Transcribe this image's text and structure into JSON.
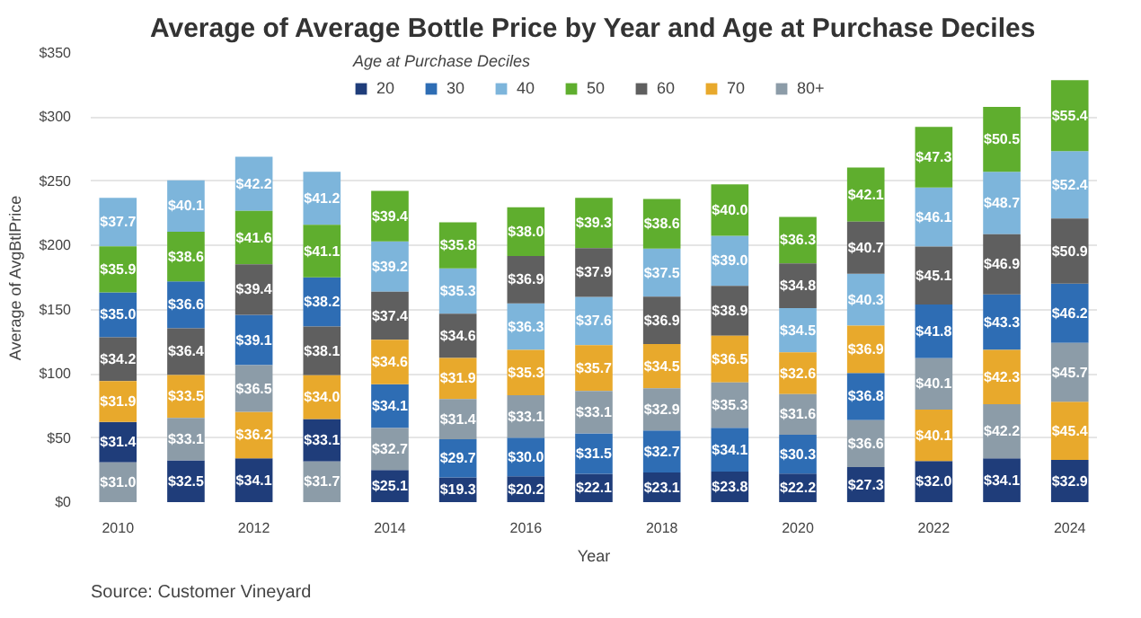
{
  "chart_data": {
    "type": "bar",
    "title": "Average of Average Bottle Price by Year and Age at Purchase Deciles",
    "xlabel": "Year",
    "ylabel": "Average of AvgBtlPrice",
    "legend_title": "Age at Purchase Deciles",
    "legend": "top",
    "grid": "y",
    "x": [
      2010,
      2011,
      2012,
      2013,
      2014,
      2015,
      2016,
      2017,
      2018,
      2019,
      2020,
      2021,
      2022,
      2023,
      2024
    ],
    "xlim": [
      2009.6,
      2024.4
    ],
    "xticks": [
      2010,
      2012,
      2014,
      2016,
      2018,
      2020,
      2022,
      2024
    ],
    "ylim": [
      0,
      350
    ],
    "yticks": [
      {
        "value": 0,
        "label": "$0"
      },
      {
        "value": 50,
        "label": "$50"
      },
      {
        "value": 100,
        "label": "$100"
      },
      {
        "value": 150,
        "label": "$150"
      },
      {
        "value": 200,
        "label": "$200"
      },
      {
        "value": 250,
        "label": "$250"
      },
      {
        "value": 300,
        "label": "$300"
      },
      {
        "value": 350,
        "label": "$350"
      }
    ],
    "series": [
      {
        "name": "20",
        "color": "#1f3d7a",
        "base": [
          31.0,
          0,
          0,
          31.7,
          0,
          0,
          0,
          0,
          0,
          0,
          0,
          0,
          0,
          0,
          0
        ],
        "values": [
          31.4,
          32.5,
          34.1,
          33.1,
          25.1,
          19.3,
          20.2,
          22.1,
          23.1,
          23.8,
          22.2,
          27.3,
          32.0,
          34.1,
          32.9
        ],
        "value_labels": [
          "$31.4",
          "$32.5",
          "$34.1",
          "$33.1",
          "$25.1",
          "$19.3",
          "$20.2",
          "$22.1",
          "$23.1",
          "$23.8",
          "$22.2",
          "$27.3",
          "$32.0",
          "$34.1",
          "$32.9"
        ]
      },
      {
        "name": "30",
        "color": "#2e6db4",
        "base": [
          128.5,
          135.5,
          106.8,
          136.9,
          57.8,
          19.3,
          20.2,
          22.1,
          23.1,
          23.8,
          22.2,
          63.9,
          112.2,
          118.6,
          124.0
        ],
        "values": [
          35.0,
          36.6,
          39.1,
          38.2,
          34.1,
          29.7,
          30.0,
          31.5,
          32.7,
          34.1,
          30.3,
          36.8,
          41.8,
          43.3,
          46.2
        ],
        "value_labels": [
          "$35.0",
          "$36.6",
          "$39.1",
          "$38.2",
          "$34.1",
          "$29.7",
          "$30.0",
          "$31.5",
          "$32.7",
          "$34.1",
          "$30.3",
          "$36.8",
          "$41.8",
          "$43.3",
          "$46.2"
        ]
      },
      {
        "name": "40",
        "color": "#7db5db",
        "base": [
          199.4,
          210.7,
          226.9,
          216.2,
          163.9,
          146.9,
          118.6,
          122.4,
          160.1,
          168.6,
          116.7,
          137.6,
          199.1,
          208.8,
          221.1
        ],
        "values": [
          37.7,
          40.1,
          42.2,
          41.2,
          39.2,
          35.3,
          36.3,
          37.6,
          37.5,
          39.0,
          34.5,
          40.3,
          46.1,
          48.7,
          52.4
        ],
        "value_labels": [
          "$37.7",
          "$40.1",
          "$42.2",
          "$41.2",
          "$39.2",
          "$35.3",
          "$36.3",
          "$37.6",
          "$37.5",
          "$39.0",
          "$34.5",
          "$40.3",
          "$46.1",
          "$48.7",
          "$52.4"
        ]
      },
      {
        "name": "50",
        "color": "#5fae2e",
        "base": [
          163.5,
          172.1,
          185.3,
          175.1,
          203.1,
          182.2,
          191.8,
          197.9,
          197.6,
          207.6,
          186.0,
          218.6,
          245.2,
          257.5,
          273.5
        ],
        "values": [
          35.9,
          38.6,
          41.6,
          41.1,
          39.4,
          35.8,
          38.0,
          39.3,
          38.6,
          40.0,
          36.3,
          42.1,
          47.3,
          50.5,
          55.4
        ],
        "value_labels": [
          "$35.9",
          "$38.6",
          "$41.6",
          "$41.1",
          "$39.4",
          "$35.8",
          "$38.0",
          "$39.3",
          "$38.6",
          "$40.0",
          "$36.3",
          "$42.1",
          "$47.3",
          "$50.5",
          "$55.4"
        ]
      },
      {
        "name": "60",
        "color": "#5f5f5f",
        "base": [
          94.3,
          99.1,
          145.9,
          98.8,
          126.5,
          112.3,
          154.9,
          160.0,
          123.2,
          129.7,
          151.2,
          177.9,
          154.0,
          161.9,
          170.2
        ],
        "values": [
          34.2,
          36.4,
          39.4,
          38.1,
          37.4,
          34.6,
          36.9,
          37.9,
          36.9,
          38.9,
          34.8,
          40.7,
          45.1,
          46.9,
          50.9
        ],
        "value_labels": [
          "$34.2",
          "$36.4",
          "$39.4",
          "$38.1",
          "$37.4",
          "$34.6",
          "$36.9",
          "$37.9",
          "$36.9",
          "$38.9",
          "$34.8",
          "$40.7",
          "$45.1",
          "$46.9",
          "$50.9"
        ]
      },
      {
        "name": "70",
        "color": "#e8a92c",
        "base": [
          62.4,
          65.6,
          34.1,
          64.8,
          91.9,
          80.4,
          83.3,
          86.7,
          88.7,
          93.2,
          84.1,
          100.7,
          32.0,
          76.3,
          32.9
        ],
        "values": [
          31.9,
          33.5,
          36.2,
          34.0,
          34.6,
          31.9,
          35.3,
          35.7,
          34.5,
          36.5,
          32.6,
          36.9,
          40.1,
          42.3,
          45.4
        ],
        "value_labels": [
          "$31.9",
          "$33.5",
          "$36.2",
          "$34.0",
          "$34.6",
          "$31.9",
          "$35.3",
          "$35.7",
          "$34.5",
          "$36.5",
          "$32.6",
          "$36.9",
          "$40.1",
          "$42.3",
          "$45.4"
        ]
      },
      {
        "name": "80+",
        "color": "#8c9ca8",
        "base": [
          0,
          32.5,
          70.3,
          0,
          25.1,
          49.0,
          50.2,
          53.6,
          55.8,
          57.9,
          52.5,
          27.3,
          72.1,
          34.1,
          78.3
        ],
        "values": [
          31.0,
          33.1,
          36.5,
          31.7,
          32.7,
          31.4,
          33.1,
          33.1,
          32.9,
          35.3,
          31.6,
          36.6,
          40.1,
          42.2,
          45.7
        ],
        "value_labels": [
          "$31.0",
          "$33.1",
          "$36.5",
          "$31.7",
          "$32.7",
          "$31.4",
          "$33.1",
          "$33.1",
          "$32.9",
          "$35.3",
          "$31.6",
          "$36.6",
          "$40.1",
          "$42.2",
          "$45.7"
        ]
      }
    ],
    "annotations": [
      "Source: Customer Vineyard"
    ]
  }
}
